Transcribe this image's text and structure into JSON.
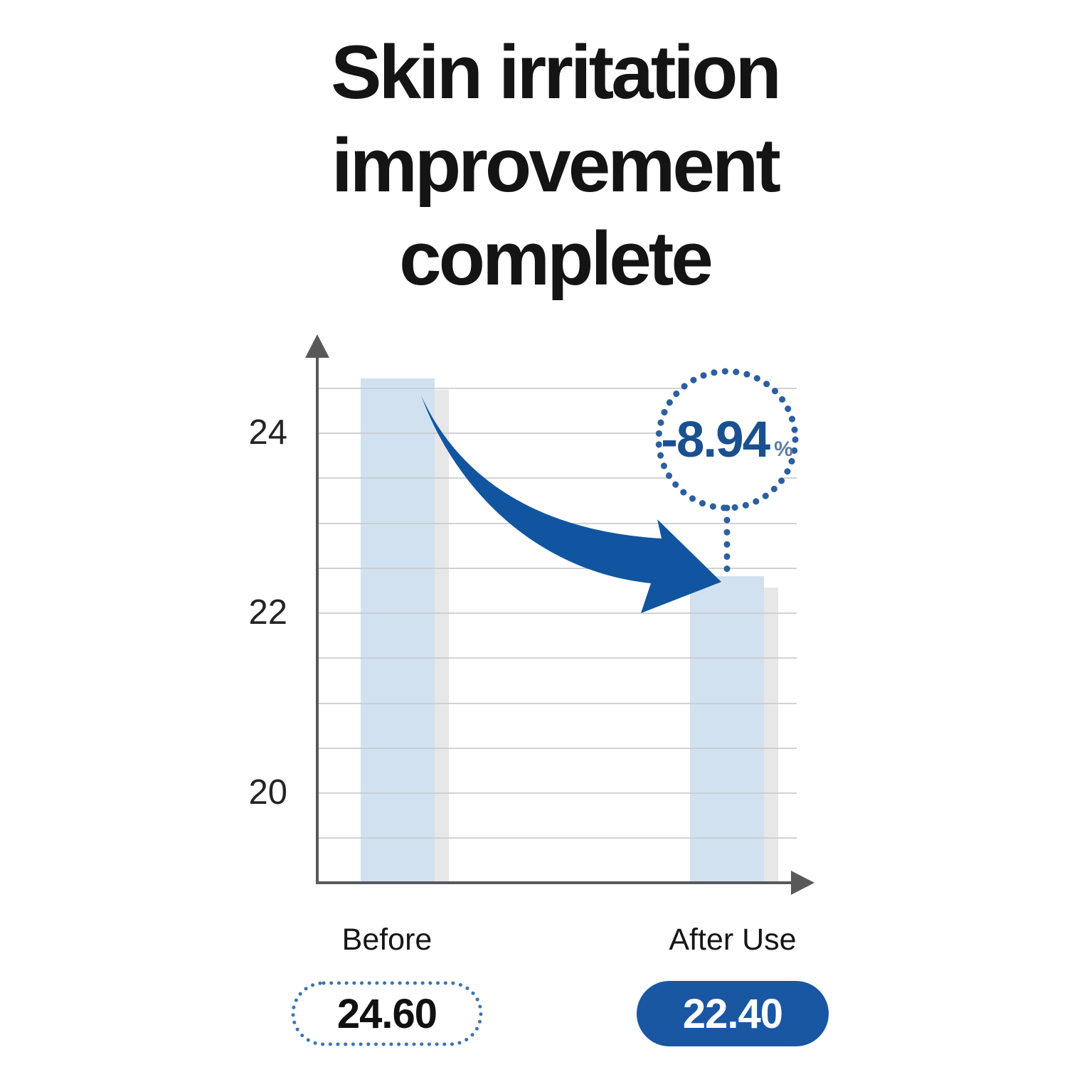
{
  "title": {
    "line1": "Skin irritation",
    "line2": "improvement",
    "line3": "complete"
  },
  "annotation": {
    "value": "-8.94",
    "unit": "%"
  },
  "colors": {
    "accent_blue": "#1155A0",
    "annotation_number_blue": "#1A508F",
    "percent_gray_blue": "#5D7CA3",
    "dot_blue": "#2B5F9F",
    "pill_dot_blue": "#3C74B5",
    "bar_fill": "#D2E1EF",
    "bar_shadow": "#E7E7E7",
    "axis_gray": "#58595B",
    "gridline_gray": "#C8CACC",
    "title_black": "#141414",
    "pill_after_bg": "#1A57A3",
    "pill_after_text": "#FFFFFF",
    "value_text_black": "#111111"
  },
  "chart_data": {
    "type": "bar",
    "title": "Skin irritation improvement complete",
    "categories": [
      "Before",
      "After Use"
    ],
    "values": [
      24.6,
      22.4
    ],
    "value_labels": [
      "24.60",
      "22.40"
    ],
    "change_percent": -8.94,
    "annotation": "-8.94 %",
    "yticks": [
      24,
      22,
      20
    ],
    "ylim": [
      19,
      25
    ],
    "gridline_step": 0.5,
    "grid": true,
    "legend": false
  }
}
